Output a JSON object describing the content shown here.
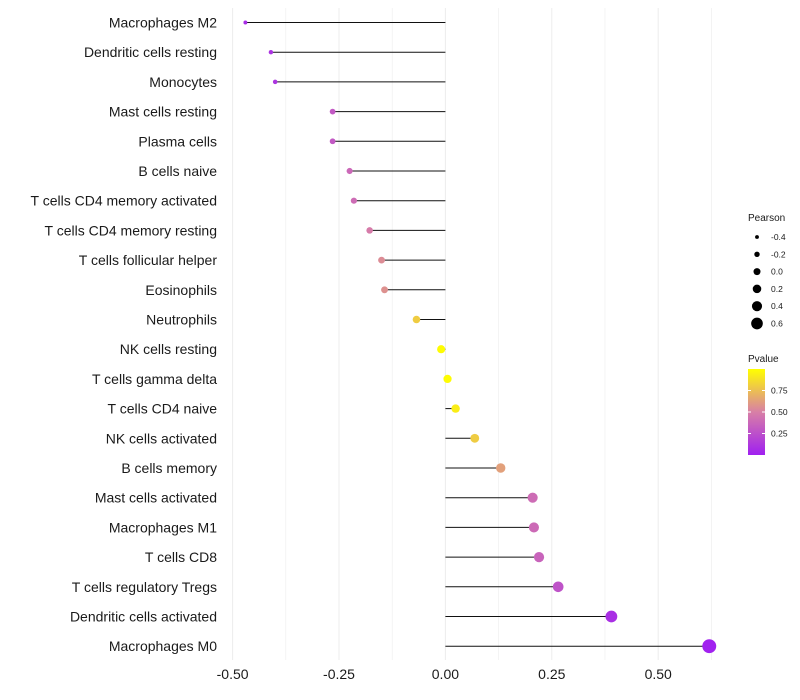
{
  "chart_data": {
    "type": "lollipop",
    "categories": [
      "Macrophages M2",
      "Dendritic cells resting",
      "Monocytes",
      "Mast cells resting",
      "Plasma cells",
      "B cells naive",
      "T cells CD4 memory activated",
      "T cells CD4 memory resting",
      "T cells follicular helper",
      "Eosinophils",
      "Neutrophils",
      "NK cells resting",
      "T cells gamma delta",
      "T cells CD4 naive",
      "NK cells activated",
      "B cells memory",
      "Mast cells activated",
      "Macrophages M1",
      "T cells CD8",
      "T cells regulatory  Tregs ",
      "Dendritic cells activated",
      "Macrophages M0"
    ],
    "pearson": [
      -0.47,
      -0.41,
      -0.4,
      -0.265,
      -0.265,
      -0.225,
      -0.215,
      -0.178,
      -0.15,
      -0.143,
      -0.068,
      -0.01,
      0.005,
      0.024,
      0.069,
      0.13,
      0.205,
      0.208,
      0.22,
      0.265,
      0.39,
      0.62
    ],
    "pvalue": [
      0.07,
      0.1,
      0.11,
      0.3,
      0.3,
      0.38,
      0.4,
      0.48,
      0.55,
      0.57,
      0.8,
      0.99,
      0.99,
      0.93,
      0.8,
      0.63,
      0.4,
      0.39,
      0.36,
      0.27,
      0.08,
      0.01
    ],
    "x_ticks": [
      -0.5,
      -0.25,
      0.0,
      0.25,
      0.5
    ],
    "x_tick_labels": [
      "-0.50",
      "-0.25",
      "0.00",
      "0.25",
      "0.50"
    ],
    "xlim": [
      -0.52,
      0.64
    ],
    "grid": true,
    "legend": {
      "position": "right",
      "size": {
        "title": "Pearson",
        "values": [
          -0.4,
          -0.2,
          0.0,
          0.2,
          0.4,
          0.6
        ],
        "labels": [
          "-0.4",
          "-0.2",
          "0.0",
          "0.2",
          "0.4",
          "0.6"
        ]
      },
      "color": {
        "title": "Pvalue",
        "range": [
          0,
          1
        ],
        "ticks": [
          0.75,
          0.5,
          0.25
        ],
        "tick_labels": [
          "0.75",
          "0.50",
          "0.25"
        ],
        "low_color": "#a020f0",
        "mid_color": "#d87fa6",
        "high_color": "#ffff00"
      }
    }
  }
}
